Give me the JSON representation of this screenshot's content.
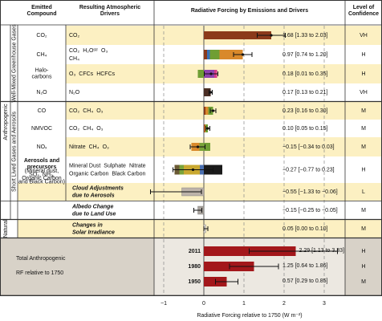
{
  "header": {
    "compound": [
      "Emitted",
      "Compound"
    ],
    "drivers": [
      "Resulting Atmospheric",
      "Drivers"
    ],
    "chart_title": "Radiative Forcing by Emissions and Drivers",
    "confidence": [
      "Level of",
      "Confidence"
    ]
  },
  "side_labels": {
    "anthropogenic": "Anthropogenic",
    "natural": "Natural",
    "wmghg": "Well-Mixed Greenhouse Gases",
    "slcf": "Short Lived Gases and Aerosols"
  },
  "axis": {
    "xlim": [
      -1.24,
      3.52
    ],
    "xticks": [
      {
        "value": -1,
        "label": "−1"
      },
      0,
      1,
      2,
      3
    ],
    "xlabel": "Radiative Forcing relative to 1750 (W m⁻²)",
    "grid": true
  },
  "rows": [
    {
      "compound": [
        "CO₂"
      ],
      "drivers": [
        {
          "name": "CO₂",
          "color": "#8b3a1a",
          "value": 1.68
        }
      ],
      "value": 1.68,
      "low": 1.33,
      "high": 2.03,
      "value_label": "1.68 [1.33 to 2.03]",
      "confidence": "VH"
    },
    {
      "compound": [
        "CH₄"
      ],
      "drivers": [
        {
          "name": "CO₂",
          "color": "#8b3a1a",
          "value": 0.08
        },
        {
          "name": "H₂Oˢᵗʳ",
          "color": "#3a6fb5",
          "value": 0.07
        },
        {
          "name": "O₃",
          "color": "#6f9e34",
          "value": 0.24
        },
        {
          "name": "CH₄",
          "color": "#d9892b",
          "value": 0.58
        }
      ],
      "value": 0.97,
      "low": 0.74,
      "high": 1.2,
      "value_label": "0.97 [0.74 to 1.20]",
      "confidence": "H"
    },
    {
      "compound": [
        "Halo-",
        "carbons"
      ],
      "drivers": [
        {
          "name": "O₃",
          "color": "#6f9e34",
          "value": -0.15
        },
        {
          "name": "CFCs",
          "color": "#8e44ad",
          "value": 0.26
        },
        {
          "name": "HCFCs",
          "color": "#d63a8a",
          "value": 0.07
        }
      ],
      "value": 0.18,
      "low": 0.01,
      "high": 0.35,
      "value_label": "0.18 [0.01 to 0.35]",
      "confidence": "H"
    },
    {
      "compound": [
        "N₂O"
      ],
      "drivers": [
        {
          "name": "N₂O",
          "color": "#4a2e24",
          "value": 0.17
        }
      ],
      "value": 0.17,
      "low": 0.13,
      "high": 0.21,
      "value_label": "0.17 [0.13 to 0.21]",
      "confidence": "VH"
    },
    {
      "compound": [
        "CO"
      ],
      "drivers": [
        {
          "name": "CO₂",
          "color": "#8b3a1a",
          "value": 0.04
        },
        {
          "name": "CH₄",
          "color": "#d9892b",
          "value": 0.07
        },
        {
          "name": "O₃",
          "color": "#6f9e34",
          "value": 0.12
        }
      ],
      "value": 0.23,
      "low": 0.16,
      "high": 0.3,
      "value_label": "0.23 [0.16 to 0.30]",
      "confidence": "M"
    },
    {
      "compound": [
        "NMVOC"
      ],
      "drivers": [
        {
          "name": "CO₂",
          "color": "#8b3a1a",
          "value": 0.02
        },
        {
          "name": "CH₄",
          "color": "#d9892b",
          "value": 0.02
        },
        {
          "name": "O₃",
          "color": "#6f9e34",
          "value": 0.06
        }
      ],
      "value": 0.1,
      "low": 0.05,
      "high": 0.15,
      "value_label": "0.10 [0.05 to 0.15]",
      "confidence": "M"
    },
    {
      "compound": [
        "NOₓ"
      ],
      "drivers": [
        {
          "name": "Nitrate",
          "color": "#7aa33a",
          "value": -0.11
        },
        {
          "name": "CH₄",
          "color": "#d9892b",
          "value": -0.2
        },
        {
          "name": "O₃",
          "color": "#6f9e34",
          "value": 0.16
        }
      ],
      "value": -0.15,
      "low": -0.34,
      "high": 0.03,
      "value_label": "−0.15 [−0.34 to 0.03]",
      "confidence": "M"
    },
    {
      "compound": [
        "Aerosols and",
        "precursors"
      ],
      "note": [
        "(Mineral dust,",
        "SO₂, NH₃,",
        "Organic Carbon",
        "and Black Carbon)"
      ],
      "drivers": [
        {
          "name": "Mineral Dust",
          "color": "#4a6fb0",
          "value": -0.1
        },
        {
          "name": "Sulphate",
          "color": "#c9a830",
          "value": -0.4
        },
        {
          "name": "Nitrate",
          "color": "#7aa33a",
          "value": -0.11
        },
        {
          "name": "Organic Carbon",
          "color": "#6b5a34",
          "value": -0.12
        },
        {
          "name": "Black Carbon",
          "color": "#1a1a1a",
          "value": 0.46
        }
      ],
      "value": -0.27,
      "low": -0.77,
      "high": 0.23,
      "value_label": "−0.27 [−0.77 to 0.23]",
      "confidence": "H"
    },
    {
      "compound": [
        "Cloud Adjustments",
        "due to Aerosols"
      ],
      "color": "#bdb3aa",
      "value": -0.55,
      "low": -1.33,
      "high": -0.06,
      "value_label": "−0.55 [−1.33 to −0.06]",
      "confidence": "L"
    },
    {
      "compound": [
        "Albedo Change",
        "due to Land Use"
      ],
      "color": "#a9a39d",
      "value": -0.15,
      "low": -0.25,
      "high": -0.05,
      "value_label": "−0.15 [−0.25 to −0.05]",
      "confidence": "M"
    },
    {
      "compound": [
        "Changes in",
        "Solar Irradiance"
      ],
      "color": "#dcd8d2",
      "value": 0.05,
      "low": 0.0,
      "high": 0.1,
      "value_label": "0.05 [0.00 to 0.10]",
      "confidence": "M"
    }
  ],
  "totals": {
    "label": [
      "Total Anthropogenic",
      "RF relative to 1750"
    ],
    "color": "#a3171b",
    "rows": [
      {
        "year": "2011",
        "value": 2.29,
        "low": 1.13,
        "high": 3.33,
        "value_label": "2.29 [1.13 to 3.33]",
        "confidence": "H"
      },
      {
        "year": "1980",
        "value": 1.25,
        "low": 0.64,
        "high": 1.86,
        "value_label": "1.25 [0.64 to 1.86]",
        "confidence": "H"
      },
      {
        "year": "1950",
        "value": 0.57,
        "low": 0.29,
        "high": 0.85,
        "value_label": "0.57 [0.29 to 0.85]",
        "confidence": "M"
      }
    ]
  }
}
